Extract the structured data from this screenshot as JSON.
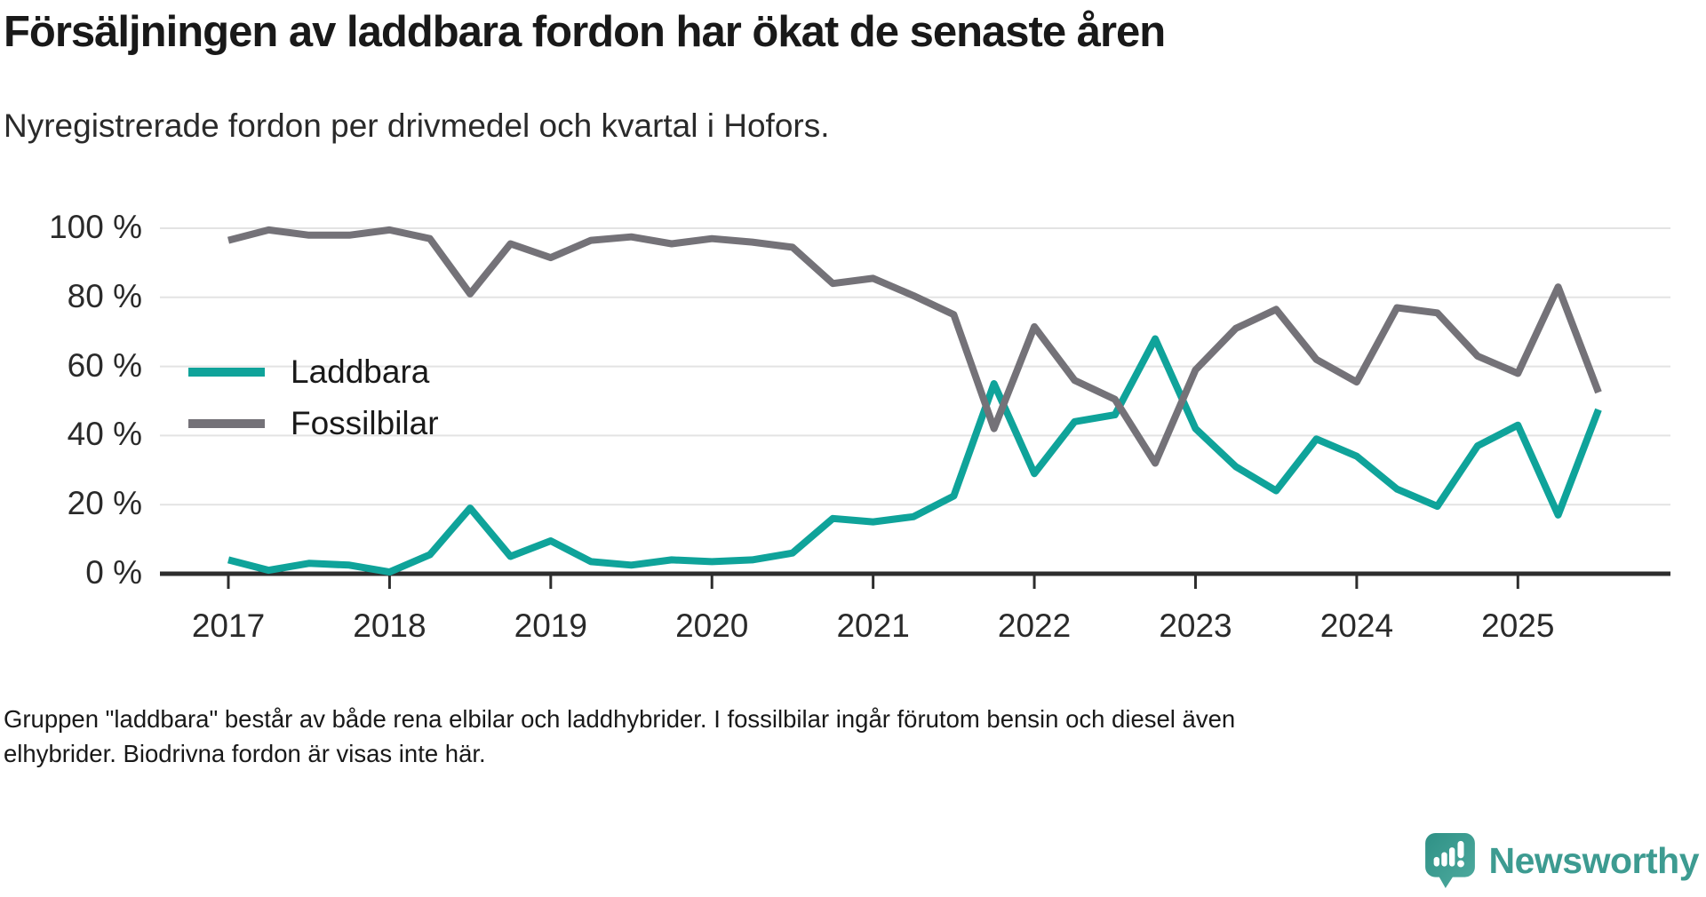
{
  "header": {
    "title": "Försäljningen av laddbara fordon har ökat de senaste åren",
    "subtitle": "Nyregistrerade fordon per drivmedel och kvartal i Hofors."
  },
  "chart_data": {
    "type": "line",
    "title": "Nyregistrerade fordon per drivmedel och kvartal i Hofors",
    "unit": "%",
    "ylim": [
      0,
      100
    ],
    "yticks": [
      0,
      20,
      40,
      60,
      80,
      100
    ],
    "ytick_format": "{v} %",
    "grid": "horizontal",
    "legend_position": "inside-left",
    "years": [
      "2017",
      "2018",
      "2019",
      "2020",
      "2021",
      "2022",
      "2023",
      "2024",
      "2025"
    ],
    "quarters": [
      "2017 Q1",
      "2017 Q2",
      "2017 Q3",
      "2017 Q4",
      "2018 Q1",
      "2018 Q2",
      "2018 Q3",
      "2018 Q4",
      "2019 Q1",
      "2019 Q2",
      "2019 Q3",
      "2019 Q4",
      "2020 Q1",
      "2020 Q2",
      "2020 Q3",
      "2020 Q4",
      "2021 Q1",
      "2021 Q2",
      "2021 Q3",
      "2021 Q4",
      "2022 Q1",
      "2022 Q2",
      "2022 Q3",
      "2022 Q4",
      "2023 Q1",
      "2023 Q2",
      "2023 Q3",
      "2023 Q4",
      "2024 Q1",
      "2024 Q2",
      "2024 Q3",
      "2024 Q4",
      "2025 Q1",
      "2025 Q2",
      "2025 Q3"
    ],
    "series": [
      {
        "name": "Laddbara",
        "color": "#0fa39a",
        "values": [
          4,
          1,
          3,
          2.5,
          0.5,
          5.5,
          19,
          5,
          9.5,
          3.5,
          2.5,
          4,
          3.5,
          4,
          6,
          16,
          15,
          16.5,
          22.5,
          55,
          29,
          44,
          46,
          68,
          42,
          31,
          24,
          39,
          34,
          24.5,
          19.5,
          37,
          43,
          17,
          47.5
        ]
      },
      {
        "name": "Fossilbilar",
        "color": "#747278",
        "values": [
          96.5,
          99.5,
          98,
          98,
          99.5,
          97,
          81,
          95.5,
          91.5,
          96.5,
          97.5,
          95.5,
          97,
          96,
          94.5,
          84,
          85.5,
          80.5,
          75,
          42,
          71.5,
          56,
          50.5,
          32,
          59,
          71,
          76.5,
          62,
          55.5,
          77,
          75.5,
          63,
          58,
          83,
          52.5
        ]
      }
    ]
  },
  "footer": {
    "line1": "Gruppen \"laddbara\" består av både rena elbilar och laddhybrider. I fossilbilar ingår förutom bensin och diesel även",
    "line2": "elhybrider. Biodrivna fordon är visas inte här."
  },
  "logo": {
    "text": "Newsworthy"
  },
  "colors": {
    "accent_teal": "#0fa39a",
    "series_gray": "#747278",
    "logo_teal": "#3d9b91",
    "gridline": "#e3e3e3",
    "axis": "#2d2d2d"
  }
}
